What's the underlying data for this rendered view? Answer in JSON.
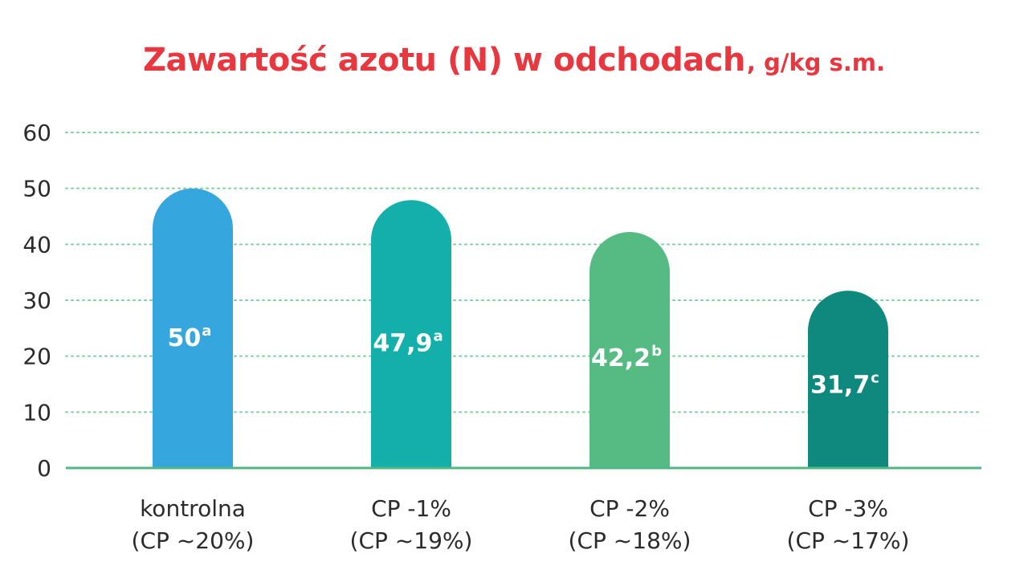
{
  "title_main": "Zawartość azotu (N) w odchodach",
  "title_unit": ", g/kg s.m.",
  "chart_data": {
    "type": "bar",
    "title": "Zawartość azotu (N) w odchodach, g/kg s.m.",
    "xlabel": "",
    "ylabel": "",
    "ylim": [
      0,
      60
    ],
    "yticks": [
      0,
      10,
      20,
      30,
      40,
      50,
      60
    ],
    "grid": true,
    "legend": "none",
    "categories": [
      [
        "kontrolna",
        "(CP ~20%)"
      ],
      [
        "CP -1%",
        "(CP ~19%)"
      ],
      [
        "CP -2%",
        "(CP ~18%)"
      ],
      [
        "CP -3%",
        "(CP ~17%)"
      ]
    ],
    "values": [
      50,
      47.9,
      42.2,
      31.7
    ],
    "value_labels": [
      "50",
      "47,9",
      "42,2",
      "31,7"
    ],
    "superscripts": [
      "a",
      "a",
      "b",
      "c"
    ],
    "colors": [
      "#36a7de",
      "#14afab",
      "#55bb82",
      "#0f897e"
    ],
    "axis_color": "#4fb784",
    "grid_color": "#7dcf9d",
    "label_color": "#2b2b2b",
    "value_label_color": "#ffffff"
  }
}
